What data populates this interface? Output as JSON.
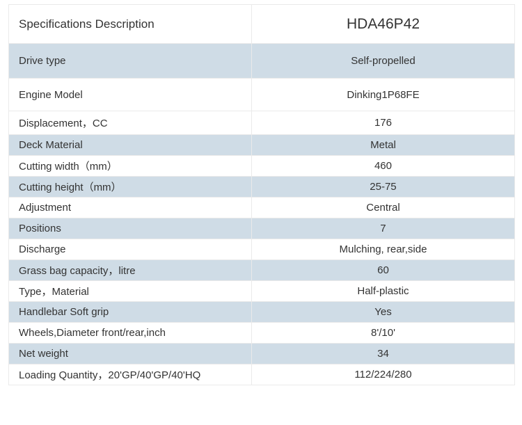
{
  "table": {
    "header": {
      "label": "Specifications  Description",
      "value": "HDA46P42"
    },
    "rows": [
      {
        "label": "Drive type",
        "value": "Self-propelled",
        "style": "r0"
      },
      {
        "label": "Engine Model",
        "value": "Dinking1P68FE",
        "style": "r1"
      },
      {
        "label": "Displacement，CC",
        "value": "176",
        "style": "r2"
      },
      {
        "label": "Deck Material",
        "value": "Metal",
        "style": "r-shade"
      },
      {
        "label": "Cutting width（mm）",
        "value": "460",
        "style": "r-plain"
      },
      {
        "label": "Cutting height（mm）",
        "value": "25-75",
        "style": "r-shade"
      },
      {
        "label": "Adjustment",
        "value": "Central",
        "style": "r-plain"
      },
      {
        "label": "Positions",
        "value": "7",
        "style": "r-shade"
      },
      {
        "label": "Discharge",
        "value": "Mulching, rear,side",
        "style": "r-plain"
      },
      {
        "label": "Grass bag capacity，litre",
        "value": "60",
        "style": "r-shade"
      },
      {
        "label": "Type，Material",
        "value": "Half-plastic",
        "style": "r-plain"
      },
      {
        "label": "Handlebar Soft grip",
        "value": "Yes",
        "style": "r-shade"
      },
      {
        "label": "Wheels,Diameter front/rear,inch",
        "value": "8'/10'",
        "style": "r-plain"
      },
      {
        "label": "Net weight",
        "value": "34",
        "style": "r-shade"
      },
      {
        "label": "Loading Quantity，20'GP/40'GP/40'HQ",
        "value": "112/224/280",
        "style": "r-plain"
      }
    ],
    "colors": {
      "shaded_bg": "#cfdce6",
      "plain_bg": "#ffffff",
      "border": "#eaeaea",
      "text": "#333333"
    }
  }
}
